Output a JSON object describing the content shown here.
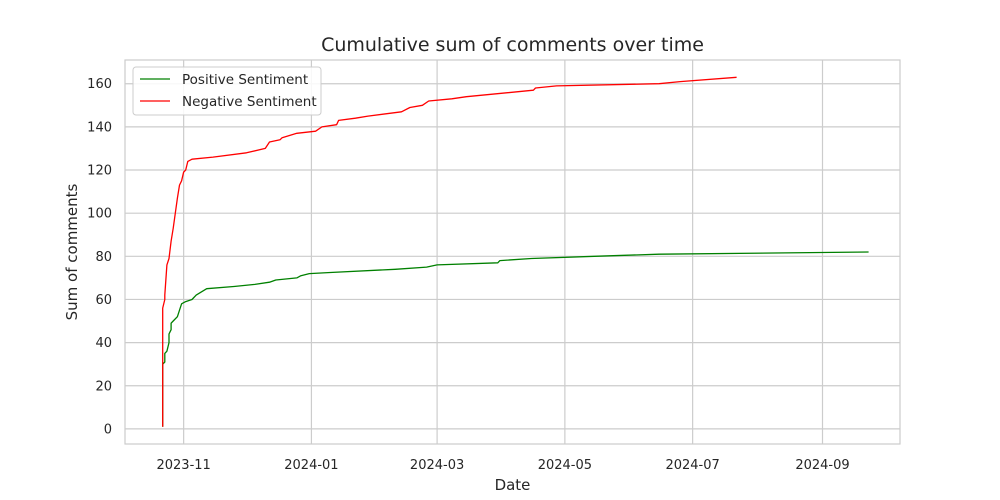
{
  "chart_data": {
    "type": "line",
    "title": "Cumulative sum of comments over time",
    "xlabel": "Date",
    "ylabel": "Sum of comments",
    "x_type": "date",
    "xlim": [
      "2023-10-04",
      "2024-10-08"
    ],
    "ylim": [
      -7,
      171
    ],
    "x_ticks": [
      "2023-11-01",
      "2024-01-01",
      "2024-03-01",
      "2024-05-01",
      "2024-07-01",
      "2024-09-01"
    ],
    "x_tick_labels": [
      "2023-11",
      "2024-01",
      "2024-03",
      "2024-05",
      "2024-07",
      "2024-09"
    ],
    "y_ticks": [
      0,
      20,
      40,
      60,
      80,
      100,
      120,
      140,
      160
    ],
    "y_tick_labels": [
      "0",
      "20",
      "40",
      "60",
      "80",
      "100",
      "120",
      "140",
      "160"
    ],
    "grid": true,
    "legend_position": "top-left",
    "series": [
      {
        "name": "Positive Sentiment",
        "color": "#008000",
        "points": [
          [
            "2023-10-22",
            1
          ],
          [
            "2023-10-22",
            30
          ],
          [
            "2023-10-23",
            31
          ],
          [
            "2023-10-23",
            35
          ],
          [
            "2023-10-24",
            36
          ],
          [
            "2023-10-25",
            40
          ],
          [
            "2023-10-25",
            44
          ],
          [
            "2023-10-26",
            46
          ],
          [
            "2023-10-26",
            49
          ],
          [
            "2023-10-27",
            50
          ],
          [
            "2023-10-29",
            52
          ],
          [
            "2023-10-30",
            55
          ],
          [
            "2023-10-31",
            58
          ],
          [
            "2023-11-02",
            59
          ],
          [
            "2023-11-05",
            60
          ],
          [
            "2023-11-07",
            62
          ],
          [
            "2023-11-12",
            65
          ],
          [
            "2023-11-25",
            66
          ],
          [
            "2023-12-05",
            67
          ],
          [
            "2023-12-12",
            68
          ],
          [
            "2023-12-15",
            69
          ],
          [
            "2023-12-25",
            70
          ],
          [
            "2023-12-27",
            71
          ],
          [
            "2023-12-31",
            72
          ],
          [
            "2024-01-10",
            72.5
          ],
          [
            "2024-02-10",
            74
          ],
          [
            "2024-02-25",
            75
          ],
          [
            "2024-03-01",
            76
          ],
          [
            "2024-03-30",
            77
          ],
          [
            "2024-03-31",
            78
          ],
          [
            "2024-04-15",
            79
          ],
          [
            "2024-05-15",
            80
          ],
          [
            "2024-06-15",
            81
          ],
          [
            "2024-09-23",
            82
          ]
        ]
      },
      {
        "name": "Negative Sentiment",
        "color": "#ff0000",
        "points": [
          [
            "2023-10-22",
            1
          ],
          [
            "2023-10-22",
            56
          ],
          [
            "2023-10-23",
            60
          ],
          [
            "2023-10-23",
            62
          ],
          [
            "2023-10-24",
            76
          ],
          [
            "2023-10-25",
            79
          ],
          [
            "2023-10-26",
            87
          ],
          [
            "2023-10-27",
            93
          ],
          [
            "2023-10-28",
            100
          ],
          [
            "2023-10-29",
            107
          ],
          [
            "2023-10-30",
            113
          ],
          [
            "2023-10-31",
            115
          ],
          [
            "2023-11-01",
            119
          ],
          [
            "2023-11-02",
            120
          ],
          [
            "2023-11-03",
            124
          ],
          [
            "2023-11-05",
            125
          ],
          [
            "2023-11-15",
            126
          ],
          [
            "2023-12-01",
            128
          ],
          [
            "2023-12-10",
            130
          ],
          [
            "2023-12-12",
            133
          ],
          [
            "2023-12-17",
            134
          ],
          [
            "2023-12-18",
            135
          ],
          [
            "2023-12-25",
            137
          ],
          [
            "2024-01-03",
            138
          ],
          [
            "2024-01-06",
            140
          ],
          [
            "2024-01-13",
            141
          ],
          [
            "2024-01-14",
            143
          ],
          [
            "2024-01-22",
            144
          ],
          [
            "2024-01-28",
            145
          ],
          [
            "2024-02-13",
            147
          ],
          [
            "2024-02-17",
            149
          ],
          [
            "2024-02-23",
            150
          ],
          [
            "2024-02-26",
            152
          ],
          [
            "2024-03-08",
            153
          ],
          [
            "2024-03-15",
            154
          ],
          [
            "2024-04-16",
            157
          ],
          [
            "2024-04-17",
            158
          ],
          [
            "2024-04-27",
            159
          ],
          [
            "2024-06-15",
            160
          ],
          [
            "2024-06-25",
            161
          ],
          [
            "2024-07-22",
            163
          ]
        ]
      }
    ]
  }
}
